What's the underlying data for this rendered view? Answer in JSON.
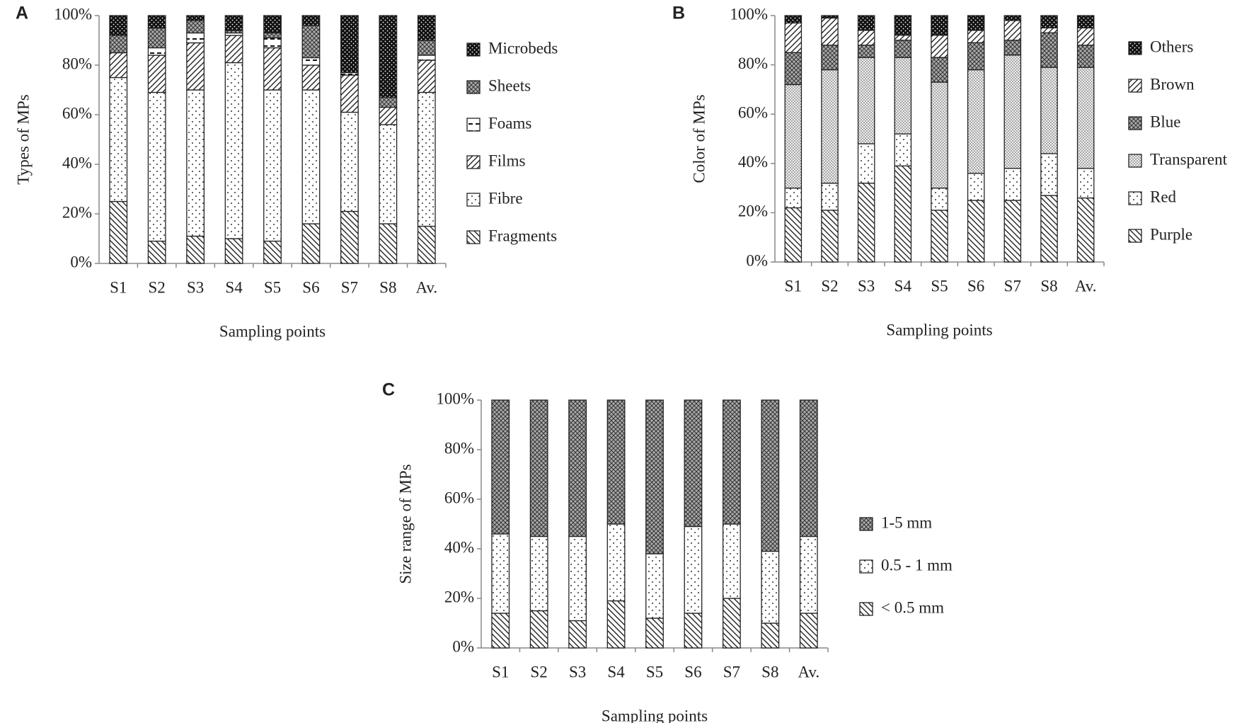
{
  "chart_data": [
    {
      "type": "bar",
      "stacked": true,
      "panel_label": "A",
      "ylabel": "Types of MPs",
      "xlabel": "Sampling points",
      "categories": [
        "S1",
        "S2",
        "S3",
        "S4",
        "S5",
        "S6",
        "S7",
        "S8",
        "Av."
      ],
      "ylim": [
        0,
        100
      ],
      "yticks": [
        {
          "value": 0,
          "label": "0%"
        },
        {
          "value": 20,
          "label": "20%"
        },
        {
          "value": 40,
          "label": "40%"
        },
        {
          "value": 60,
          "label": "60%"
        },
        {
          "value": 80,
          "label": "80%"
        },
        {
          "value": 100,
          "label": "100%"
        }
      ],
      "series": [
        {
          "name": "Fragments",
          "pattern": "hatch-down",
          "values": [
            25,
            9,
            11,
            10,
            9,
            16,
            21,
            16,
            15
          ]
        },
        {
          "name": "Fibre",
          "pattern": "dots",
          "values": [
            50,
            60,
            59,
            71,
            61,
            54,
            40,
            40,
            54
          ]
        },
        {
          "name": "Films",
          "pattern": "hatch-up",
          "values": [
            10,
            15,
            19,
            11,
            17,
            10,
            15,
            7,
            13
          ]
        },
        {
          "name": "Foams",
          "pattern": "dash",
          "values": [
            0,
            3,
            4,
            1,
            4,
            3,
            1,
            0,
            2
          ]
        },
        {
          "name": "Sheets",
          "pattern": "cross",
          "values": [
            7,
            8,
            5,
            1,
            2,
            13,
            0,
            4,
            6
          ]
        },
        {
          "name": "Microbeds",
          "pattern": "dark-dots",
          "values": [
            8,
            5,
            2,
            6,
            7,
            4,
            23,
            33,
            10
          ]
        }
      ]
    },
    {
      "type": "bar",
      "stacked": true,
      "panel_label": "B",
      "ylabel": "Color of MPs",
      "xlabel": "Sampling points",
      "categories": [
        "S1",
        "S2",
        "S3",
        "S4",
        "S5",
        "S6",
        "S7",
        "S8",
        "Av."
      ],
      "ylim": [
        0,
        100
      ],
      "yticks": [
        {
          "value": 0,
          "label": "0%"
        },
        {
          "value": 20,
          "label": "20%"
        },
        {
          "value": 40,
          "label": "40%"
        },
        {
          "value": 60,
          "label": "60%"
        },
        {
          "value": 80,
          "label": "80%"
        },
        {
          "value": 100,
          "label": "100%"
        }
      ],
      "series": [
        {
          "name": "Purple",
          "pattern": "hatch-down",
          "values": [
            22,
            21,
            32,
            39,
            21,
            25,
            25,
            27,
            26
          ]
        },
        {
          "name": "Red",
          "pattern": "dots",
          "values": [
            8,
            11,
            16,
            13,
            9,
            11,
            13,
            17,
            12
          ]
        },
        {
          "name": "Transparent",
          "pattern": "fine-dots",
          "values": [
            42,
            46,
            35,
            31,
            43,
            42,
            46,
            35,
            41
          ]
        },
        {
          "name": "Blue",
          "pattern": "cross",
          "values": [
            13,
            10,
            5,
            7,
            10,
            11,
            6,
            14,
            9
          ]
        },
        {
          "name": "Brown",
          "pattern": "hatch-up",
          "values": [
            12,
            11,
            6,
            2,
            9,
            5,
            8,
            2,
            7
          ]
        },
        {
          "name": "Others",
          "pattern": "dark-dots",
          "values": [
            3,
            1,
            6,
            8,
            8,
            6,
            2,
            5,
            5
          ]
        }
      ]
    },
    {
      "type": "bar",
      "stacked": true,
      "panel_label": "C",
      "ylabel": "Size range of MPs",
      "xlabel": "Sampling points",
      "categories": [
        "S1",
        "S2",
        "S3",
        "S4",
        "S5",
        "S6",
        "S7",
        "S8",
        "Av."
      ],
      "ylim": [
        0,
        100
      ],
      "yticks": [
        {
          "value": 0,
          "label": "0%"
        },
        {
          "value": 20,
          "label": "20%"
        },
        {
          "value": 40,
          "label": "40%"
        },
        {
          "value": 60,
          "label": "60%"
        },
        {
          "value": 80,
          "label": "80%"
        },
        {
          "value": 100,
          "label": "100%"
        }
      ],
      "series": [
        {
          "name": "< 0.5 mm",
          "pattern": "hatch-down",
          "values": [
            14,
            15,
            11,
            19,
            12,
            14,
            20,
            10,
            14
          ]
        },
        {
          "name": "0.5 - 1 mm",
          "pattern": "dots",
          "values": [
            32,
            30,
            34,
            31,
            26,
            35,
            30,
            29,
            31
          ]
        },
        {
          "name": "1-5 mm",
          "pattern": "cross",
          "values": [
            54,
            55,
            55,
            50,
            62,
            51,
            50,
            61,
            55
          ]
        }
      ]
    }
  ]
}
